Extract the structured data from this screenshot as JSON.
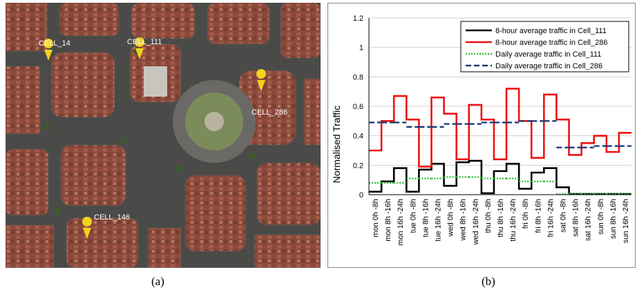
{
  "panels": {
    "left_caption": "(a)",
    "right_caption": "(b)"
  },
  "map": {
    "markers": [
      {
        "label": "CELL_14",
        "color": "#f2d21b"
      },
      {
        "label": "CELL_111",
        "color": "#f2d21b"
      },
      {
        "label": "CELL_286",
        "color": "#f2d21b"
      },
      {
        "label": "CELL_146",
        "color": "#f2d21b"
      }
    ]
  },
  "chart_data": {
    "type": "line",
    "title": "",
    "xlabel": "",
    "ylabel": "Normalised Traffic",
    "ylim": [
      0,
      1.2
    ],
    "yticks": [
      "0",
      "0.2",
      "0.4",
      "0.6",
      "0.8",
      "1",
      "1.2"
    ],
    "grid": "horizontal",
    "legend_position": "top-right",
    "categories": [
      "mon 0h -8h",
      "mon 8h -16h",
      "mon 16h -24h",
      "tue 0h -8h",
      "tue 8h -16h",
      "tue 16h -24h",
      "wed 0h -8h",
      "wed 8h -16h",
      "wed 16h -24h",
      "thu 0h -8h",
      "thu 8h -16h",
      "thu 16h -24h",
      "fri 0h -8h",
      "fri 8h -16h",
      "fri 16h -24h",
      "sat 0h -8h",
      "sat 8h -16h",
      "sat 16h -24h",
      "sun 0h -8h",
      "sun 8h -16h",
      "sun 16h -24h"
    ],
    "series": [
      {
        "name": "8-hour average traffic in Cell_111",
        "color": "#000000",
        "style": "step-solid",
        "values": [
          0.02,
          0.09,
          0.18,
          0.02,
          0.17,
          0.21,
          0.06,
          0.22,
          0.23,
          0.01,
          0.16,
          0.21,
          0.04,
          0.15,
          0.18,
          0.05,
          0.005,
          0.005,
          0.005,
          0.005,
          0.005
        ]
      },
      {
        "name": "8-hour average traffic in Cell_286",
        "color": "#ee1111",
        "style": "step-solid",
        "values": [
          0.3,
          0.5,
          0.67,
          0.51,
          0.19,
          0.66,
          0.55,
          0.24,
          0.61,
          0.51,
          0.24,
          0.72,
          0.5,
          0.25,
          0.68,
          0.51,
          0.27,
          0.35,
          0.4,
          0.29,
          0.42
        ]
      },
      {
        "name": "Daily average traffic in Cell_111",
        "color": "#2ebd3a",
        "style": "dotted",
        "values": [
          0.08,
          0.08,
          0.08,
          0.11,
          0.11,
          0.11,
          0.12,
          0.12,
          0.12,
          0.11,
          0.11,
          0.11,
          0.09,
          0.09,
          0.09,
          0.005,
          0.005,
          0.005,
          0.005,
          0.005,
          0.005
        ]
      },
      {
        "name": "Daily average traffic in Cell_286",
        "color": "#1f3a7a",
        "style": "dashed",
        "values": [
          0.49,
          0.49,
          0.49,
          0.46,
          0.46,
          0.46,
          0.48,
          0.48,
          0.48,
          0.49,
          0.49,
          0.49,
          0.5,
          0.5,
          0.5,
          0.32,
          0.32,
          0.32,
          0.33,
          0.33,
          0.33
        ]
      }
    ]
  }
}
